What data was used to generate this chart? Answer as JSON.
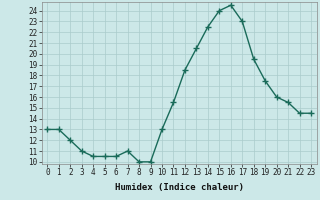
{
  "x": [
    0,
    1,
    2,
    3,
    4,
    5,
    6,
    7,
    8,
    9,
    10,
    11,
    12,
    13,
    14,
    15,
    16,
    17,
    18,
    19,
    20,
    21,
    22,
    23
  ],
  "y": [
    13,
    13,
    12,
    11,
    10.5,
    10.5,
    10.5,
    11,
    10,
    10,
    13,
    15.5,
    18.5,
    20.5,
    22.5,
    24,
    24.5,
    23,
    19.5,
    17.5,
    16,
    15.5,
    14.5,
    14.5
  ],
  "line_color": "#1a6b5a",
  "marker_color": "#1a6b5a",
  "bg_color": "#cce8e8",
  "grid_color": "#aacccc",
  "xlabel": "Humidex (Indice chaleur)",
  "xlim": [
    -0.5,
    23.5
  ],
  "ylim": [
    9.8,
    24.8
  ],
  "yticks": [
    10,
    11,
    12,
    13,
    14,
    15,
    16,
    17,
    18,
    19,
    20,
    21,
    22,
    23,
    24
  ],
  "xticks": [
    0,
    1,
    2,
    3,
    4,
    5,
    6,
    7,
    8,
    9,
    10,
    11,
    12,
    13,
    14,
    15,
    16,
    17,
    18,
    19,
    20,
    21,
    22,
    23
  ],
  "tick_fontsize": 5.5,
  "label_fontsize": 6.5,
  "linewidth": 1.0,
  "markersize": 2.0
}
